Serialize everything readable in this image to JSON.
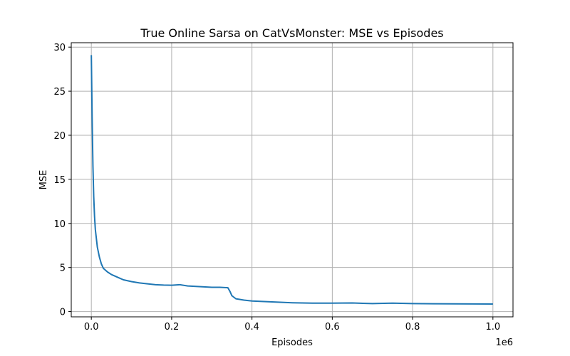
{
  "chart_data": {
    "type": "line",
    "title": "True Online Sarsa on CatVsMonster: MSE vs Episodes",
    "xlabel": "Episodes",
    "ylabel": "MSE",
    "x_offset_label": "1e6",
    "xlim": [
      -0.05,
      1.05
    ],
    "ylim": [
      -0.6,
      30.5
    ],
    "grid": true,
    "x_ticks": [
      0.0,
      0.2,
      0.4,
      0.6,
      0.8,
      1.0
    ],
    "x_tick_labels": [
      "0.0",
      "0.2",
      "0.4",
      "0.6",
      "0.8",
      "1.0"
    ],
    "y_ticks": [
      0,
      5,
      10,
      15,
      20,
      25,
      30
    ],
    "y_tick_labels": [
      "0",
      "5",
      "10",
      "15",
      "20",
      "25",
      "30"
    ],
    "series": [
      {
        "color": "#1f77b4",
        "x": [
          0.0,
          0.002,
          0.004,
          0.006,
          0.008,
          0.01,
          0.015,
          0.02,
          0.025,
          0.03,
          0.04,
          0.05,
          0.06,
          0.07,
          0.08,
          0.1,
          0.12,
          0.14,
          0.16,
          0.18,
          0.2,
          0.22,
          0.24,
          0.26,
          0.28,
          0.3,
          0.32,
          0.34,
          0.345,
          0.35,
          0.36,
          0.38,
          0.4,
          0.45,
          0.5,
          0.55,
          0.6,
          0.65,
          0.7,
          0.75,
          0.8,
          0.85,
          0.9,
          0.95,
          1.0
        ],
        "y": [
          29.1,
          22.0,
          16.5,
          13.0,
          10.8,
          9.3,
          7.3,
          6.2,
          5.4,
          4.9,
          4.5,
          4.2,
          4.0,
          3.8,
          3.6,
          3.4,
          3.25,
          3.15,
          3.05,
          3.0,
          2.98,
          3.05,
          2.9,
          2.85,
          2.8,
          2.75,
          2.75,
          2.7,
          2.3,
          1.8,
          1.45,
          1.3,
          1.2,
          1.1,
          1.0,
          0.95,
          0.95,
          0.97,
          0.9,
          0.95,
          0.9,
          0.88,
          0.87,
          0.86,
          0.85
        ]
      }
    ]
  }
}
